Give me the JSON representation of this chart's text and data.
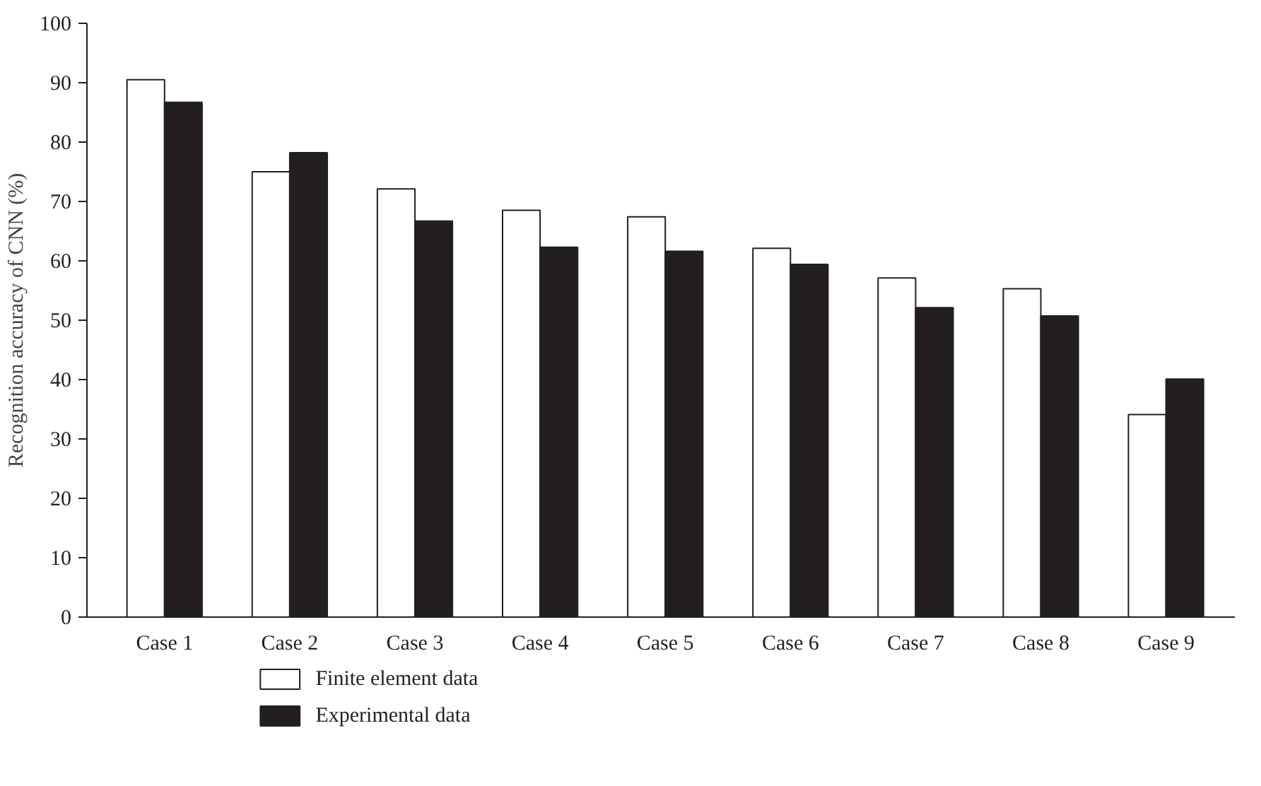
{
  "chart_data": {
    "type": "bar",
    "ylabel": "Recognition accuracy of CNN (%)",
    "categories": [
      "Case 1",
      "Case 2",
      "Case 3",
      "Case 4",
      "Case 5",
      "Case 6",
      "Case 7",
      "Case 8",
      "Case 9"
    ],
    "series": [
      {
        "name": "Finite element data",
        "color": "#ffffff",
        "values": [
          90.5,
          75.0,
          72.1,
          68.5,
          67.4,
          62.1,
          57.1,
          55.3,
          34.1
        ]
      },
      {
        "name": "Experimental data",
        "color": "#231f20",
        "values": [
          86.7,
          78.2,
          66.7,
          62.3,
          61.6,
          59.4,
          52.1,
          50.7,
          40.1
        ]
      }
    ],
    "ylim": [
      0,
      100
    ],
    "yticks": [
      0,
      10,
      20,
      30,
      40,
      50,
      60,
      70,
      80,
      90,
      100
    ],
    "grid": false,
    "legend": "bottom left"
  }
}
